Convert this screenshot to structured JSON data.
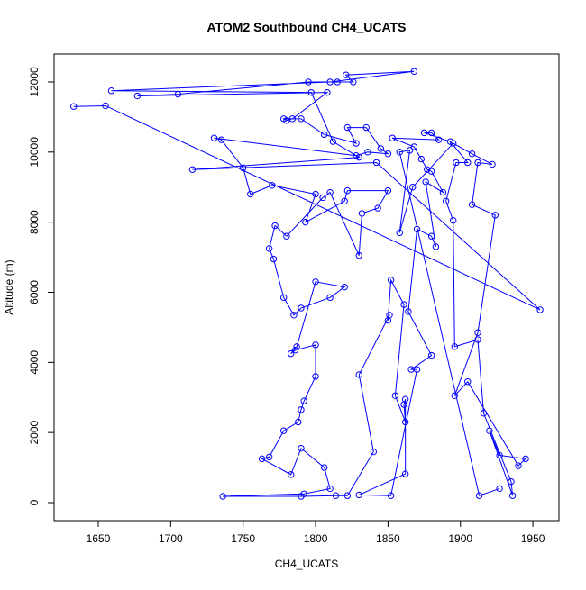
{
  "chart_data": {
    "type": "scatter-line",
    "title": "ATOM2 Southbound CH4_UCATS",
    "x_label": "CH4_UCATS",
    "y_label": "Altitude (m)",
    "color": "#0000ff",
    "xlim": [
      1619.5,
      1968
    ],
    "ylim": [
      -514,
      12796
    ],
    "xticks": [
      1650,
      1700,
      1750,
      1800,
      1850,
      1900,
      1950
    ],
    "yticks": [
      0,
      2000,
      4000,
      6000,
      8000,
      10000,
      12000
    ],
    "x": [
      1633,
      1655,
      1955,
      1842,
      1715,
      1830,
      1812,
      1797,
      1659,
      1810,
      1868,
      1821,
      1826,
      1815,
      1795,
      1705,
      1677,
      1808,
      1784,
      1780,
      1778,
      1790,
      1806,
      1828,
      1822,
      1835,
      1845,
      1850,
      1836,
      1828,
      1730,
      1735,
      1750,
      1755,
      1770,
      1800,
      1793,
      1820,
      1822,
      1850,
      1843,
      1832,
      1830,
      1810,
      1805,
      1780,
      1772,
      1768,
      1771,
      1778,
      1785,
      1790,
      1810,
      1820,
      1800,
      1787,
      1783,
      1786,
      1800,
      1800,
      1792,
      1790,
      1788,
      1778,
      1768,
      1763,
      1783,
      1790,
      1806,
      1810,
      1792,
      1736,
      1790,
      1814,
      1822,
      1840,
      1830,
      1851,
      1850,
      1852,
      1861,
      1855,
      1862,
      1861,
      1862,
      1862,
      1830,
      1852,
      1870,
      1866,
      1880,
      1864,
      1870,
      1880,
      1883,
      1876,
      1888,
      1880,
      1877,
      1873,
      1868,
      1853,
      1885,
      1880,
      1875,
      1893,
      1905,
      1897,
      1890,
      1895,
      1896,
      1912,
      1916,
      1935,
      1936,
      1920,
      1927,
      1945,
      1940,
      1905,
      1896,
      1912,
      1924,
      1908,
      1912,
      1922,
      1908,
      1895,
      1867,
      1858,
      1865,
      1858,
      1913,
      1927
    ],
    "values": [
      11300,
      11320,
      5500,
      9700,
      9500,
      9850,
      10300,
      11700,
      11750,
      12000,
      12300,
      12200,
      12000,
      12000,
      12000,
      11650,
      11600,
      11700,
      10950,
      10900,
      10950,
      10950,
      10500,
      10250,
      10700,
      10700,
      10100,
      9950,
      10000,
      9900,
      10400,
      10350,
      9550,
      8800,
      9050,
      8800,
      8000,
      8600,
      8900,
      8900,
      8400,
      8250,
      7050,
      8850,
      8700,
      7600,
      7900,
      7250,
      6950,
      5850,
      5350,
      5550,
      5850,
      6150,
      6300,
      4450,
      4250,
      4350,
      4500,
      3600,
      2900,
      2650,
      2300,
      2050,
      1300,
      1250,
      800,
      1550,
      1000,
      400,
      250,
      180,
      180,
      200,
      200,
      1450,
      3650,
      5350,
      5200,
      6350,
      5650,
      3050,
      2300,
      2800,
      2950,
      820,
      220,
      200,
      3800,
      3800,
      4200,
      5450,
      7800,
      7600,
      7300,
      9150,
      8850,
      9450,
      9500,
      9800,
      10150,
      10400,
      10350,
      10550,
      10550,
      10300,
      9700,
      9700,
      8600,
      8050,
      4450,
      4650,
      2550,
      600,
      200,
      2050,
      1350,
      1250,
      1050,
      3450,
      3050,
      4850,
      8200,
      8500,
      9700,
      9650,
      9950,
      10250,
      9000,
      7700,
      10050,
      10000,
      200,
      400
    ]
  }
}
